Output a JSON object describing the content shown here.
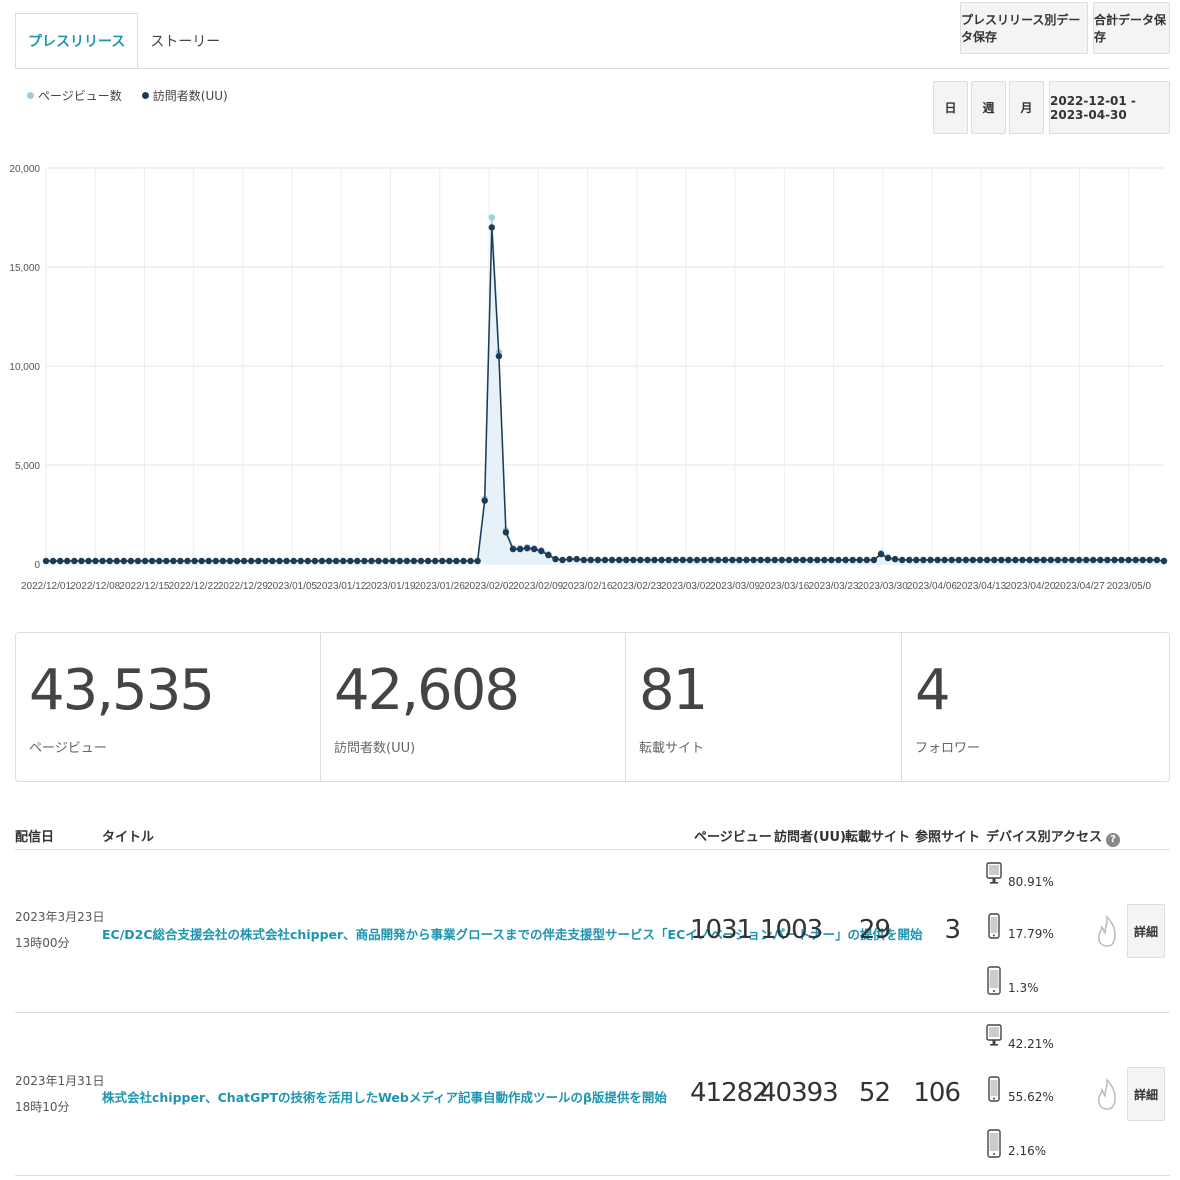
{
  "tabs": [
    {
      "label": "プレスリリース",
      "active": true
    },
    {
      "label": "ストーリー",
      "active": false
    }
  ],
  "buttons": {
    "export_by_release": "プレスリリース別データ保存",
    "export_total": "合計データ保存",
    "period_day": "日",
    "period_week": "週",
    "period_month": "月",
    "date_range": "2022-12-01 - 2023-04-30"
  },
  "legend": [
    {
      "label": "ページビュー数",
      "color": "#9fcfdf"
    },
    {
      "label": "訪問者数(UU)",
      "color": "#1f3a55"
    }
  ],
  "chart_data": {
    "type": "line",
    "ylim": [
      0,
      20000
    ],
    "yticks": [
      "20,000",
      "15,000",
      "10,000",
      "5,000",
      "0"
    ],
    "x_ticks": [
      "2022/12/01",
      "2022/12/08",
      "2022/12/15",
      "2022/12/22",
      "2022/12/29",
      "2023/01/05",
      "2023/01/12",
      "2023/01/19",
      "2023/01/26",
      "2023/02/02",
      "2023/02/09",
      "2023/02/16",
      "2023/02/23",
      "2023/03/02",
      "2023/03/09",
      "2023/03/16",
      "2023/03/23",
      "2023/03/30",
      "2023/04/06",
      "2023/04/13",
      "2023/04/20",
      "2023/04/27",
      "2023/05/0"
    ],
    "x_start": "2022/12/01",
    "series": [
      {
        "name": "ページビュー数",
        "color": "#9fcfdf",
        "values": [
          150,
          150,
          150,
          150,
          150,
          150,
          150,
          150,
          150,
          150,
          150,
          150,
          150,
          150,
          150,
          150,
          150,
          150,
          150,
          150,
          150,
          150,
          150,
          150,
          150,
          150,
          150,
          150,
          150,
          150,
          150,
          150,
          150,
          150,
          150,
          150,
          150,
          150,
          150,
          150,
          150,
          150,
          150,
          150,
          150,
          150,
          150,
          150,
          150,
          150,
          150,
          150,
          150,
          150,
          150,
          150,
          150,
          150,
          150,
          150,
          150,
          150,
          3300,
          17500,
          10700,
          1700,
          800,
          800,
          850,
          800,
          700,
          500,
          250,
          200,
          250,
          250,
          200,
          200,
          200,
          200,
          200,
          200,
          200,
          200,
          200,
          200,
          200,
          200,
          200,
          200,
          200,
          200,
          200,
          200,
          200,
          200,
          200,
          200,
          200,
          200,
          200,
          200,
          200,
          200,
          200,
          200,
          200,
          200,
          200,
          200,
          200,
          200,
          200,
          200,
          200,
          200,
          200,
          200,
          550,
          350,
          250,
          200,
          200,
          200,
          200,
          200,
          200,
          200,
          200,
          200,
          200,
          200,
          200,
          200,
          200,
          200,
          200,
          200,
          200,
          200,
          200,
          200,
          200,
          200,
          200,
          200,
          200,
          200,
          200,
          200,
          200,
          200,
          200,
          200,
          200,
          200,
          200,
          200,
          150
        ]
      },
      {
        "name": "訪問者数(UU)",
        "color": "#1f3a55",
        "values": [
          150,
          150,
          150,
          150,
          150,
          150,
          150,
          150,
          150,
          150,
          150,
          150,
          150,
          150,
          150,
          150,
          150,
          150,
          150,
          150,
          150,
          150,
          150,
          150,
          150,
          150,
          150,
          150,
          150,
          150,
          150,
          150,
          150,
          150,
          150,
          150,
          150,
          150,
          150,
          150,
          150,
          150,
          150,
          150,
          150,
          150,
          150,
          150,
          150,
          150,
          150,
          150,
          150,
          150,
          150,
          150,
          150,
          150,
          150,
          150,
          150,
          150,
          3200,
          17000,
          10500,
          1600,
          750,
          750,
          800,
          750,
          650,
          450,
          250,
          200,
          250,
          250,
          200,
          200,
          200,
          200,
          200,
          200,
          200,
          200,
          200,
          200,
          200,
          200,
          200,
          200,
          200,
          200,
          200,
          200,
          200,
          200,
          200,
          200,
          200,
          200,
          200,
          200,
          200,
          200,
          200,
          200,
          200,
          200,
          200,
          200,
          200,
          200,
          200,
          200,
          200,
          200,
          200,
          200,
          500,
          300,
          250,
          200,
          200,
          200,
          200,
          200,
          200,
          200,
          200,
          200,
          200,
          200,
          200,
          200,
          200,
          200,
          200,
          200,
          200,
          200,
          200,
          200,
          200,
          200,
          200,
          200,
          200,
          200,
          200,
          200,
          200,
          200,
          200,
          200,
          200,
          200,
          200,
          200,
          150
        ]
      }
    ]
  },
  "stats": [
    {
      "value": "43,535",
      "label": "ページビュー"
    },
    {
      "value": "42,608",
      "label": "訪問者数(UU)"
    },
    {
      "value": "81",
      "label": "転載サイト"
    },
    {
      "value": "4",
      "label": "フォロワー"
    }
  ],
  "table": {
    "headers": {
      "date": "配信日",
      "title": "タイトル",
      "pv": "ページビュー",
      "uu": "訪問者(UU)",
      "reprint": "転載サイト",
      "ref": "参照サイト",
      "device": "デバイス別アクセス"
    },
    "help": "?",
    "detail_label": "詳細",
    "rows": [
      {
        "date_line1": "2023年3月23日",
        "date_line2": "13時00分",
        "title": "EC/D2C総合支援会社の株式会社chipper、商品開発から事業グロースまでの伴走支援型サービス「ECイノベーションパートナー」の提供を開始",
        "pv": "1031",
        "uu": "1003",
        "reprint": "29",
        "ref": "3",
        "devices": [
          {
            "icon": "desktop-icon",
            "value": "80.91%"
          },
          {
            "icon": "smartphone-icon",
            "value": "17.79%"
          },
          {
            "icon": "tablet-icon",
            "value": "1.3%"
          }
        ]
      },
      {
        "date_line1": "2023年1月31日",
        "date_line2": "18時10分",
        "title": "株式会社chipper、ChatGPTの技術を活用したWebメディア記事自動作成ツールのβ版提供を開始",
        "pv": "41282",
        "uu": "40393",
        "reprint": "52",
        "ref": "106",
        "devices": [
          {
            "icon": "desktop-icon",
            "value": "42.21%"
          },
          {
            "icon": "smartphone-icon",
            "value": "55.62%"
          },
          {
            "icon": "tablet-icon",
            "value": "2.16%"
          }
        ]
      }
    ]
  }
}
